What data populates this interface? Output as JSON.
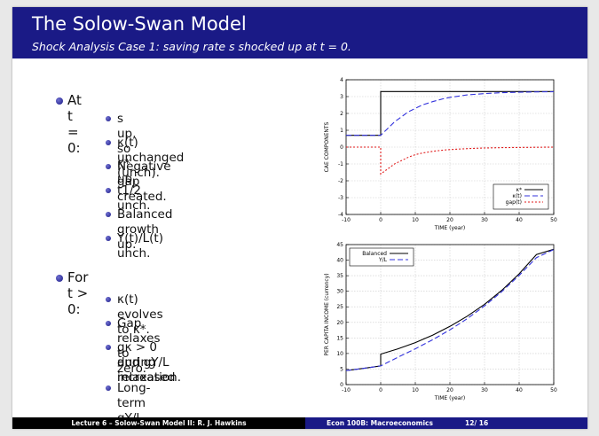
{
  "slide": {
    "title": "The Solow-Swan Model",
    "subtitle": "Shock Analysis Case 1: saving rate s shocked up at t = 0."
  },
  "bullets": {
    "group1_heading": "At t = 0:",
    "group1_items": [
      "s up, so κ* up.",
      "κ(t) unchanged (unch).",
      "Negative gap created.",
      "t1/2 unch.",
      "Balanced growth up.",
      "Y(t)/L(t) unch."
    ],
    "group2_heading": "For t > 0:",
    "group2_items": [
      "κ(t) evolves to κ*.",
      "Gap relaxes to zero.",
      "gκ > 0 and gY/L increased",
      "during relaxation.",
      "Long-term gY/L unch."
    ]
  },
  "footer": {
    "left_text": "Lecture 6 – Solow-Swan Model II: R. J. Hawkins",
    "course": "Econ 100B: Macroeconomics",
    "page": "12/ 16"
  },
  "colors": {
    "accent": "#1a1a86",
    "kappa_star": "#000000",
    "kappa": "#3333dd",
    "gap": "#e01b1b"
  },
  "chart_data": [
    {
      "type": "line",
      "ylabel": "CAE COMPONENTS",
      "xlabel": "TIME (year)",
      "xlim": [
        -10,
        50
      ],
      "ylim": [
        -4,
        4
      ],
      "x_ticks": [
        "-10",
        "0",
        "10",
        "20",
        "30",
        "40",
        "50"
      ],
      "y_ticks": [
        "-4",
        "-3",
        "-2",
        "-1",
        "0",
        "1",
        "2",
        "3",
        "4"
      ],
      "grid": true,
      "legend": "bottom-right",
      "series": [
        {
          "name": "κ*",
          "color": "#000000",
          "dash": "solid",
          "x": [
            -10,
            0,
            0,
            50
          ],
          "y": [
            0.7,
            0.7,
            3.3,
            3.3
          ]
        },
        {
          "name": "κ(t)",
          "color": "#3333dd",
          "dash": "dashed",
          "x": [
            -10,
            0,
            2,
            4,
            6,
            8,
            10,
            12,
            15,
            18,
            20,
            25,
            30,
            35,
            40,
            45,
            50
          ],
          "y": [
            0.7,
            0.7,
            1.1,
            1.5,
            1.8,
            2.1,
            2.3,
            2.5,
            2.7,
            2.87,
            2.95,
            3.1,
            3.18,
            3.23,
            3.26,
            3.28,
            3.29
          ]
        },
        {
          "name": "gap(t)",
          "color": "#e01b1b",
          "dash": "dotted",
          "x": [
            -10,
            0,
            0,
            2,
            4,
            6,
            8,
            10,
            12,
            15,
            18,
            20,
            25,
            30,
            35,
            40,
            45,
            50
          ],
          "y": [
            0,
            0,
            -1.6,
            -1.3,
            -1.0,
            -0.8,
            -0.6,
            -0.45,
            -0.35,
            -0.25,
            -0.18,
            -0.15,
            -0.09,
            -0.05,
            -0.03,
            -0.02,
            -0.01,
            0
          ]
        }
      ]
    },
    {
      "type": "line",
      "ylabel": "PER CAPITA INCOME (currency)",
      "xlabel": "TIME (year)",
      "xlim": [
        -10,
        50
      ],
      "ylim": [
        0,
        45
      ],
      "x_ticks": [
        "-10",
        "0",
        "10",
        "20",
        "30",
        "40",
        "50"
      ],
      "y_ticks": [
        "0",
        "5",
        "10",
        "15",
        "20",
        "25",
        "30",
        "35",
        "40",
        "45"
      ],
      "grid": true,
      "legend": "top-left",
      "series": [
        {
          "name": "Balanced",
          "color": "#000000",
          "dash": "solid",
          "x": [
            -10,
            -5,
            0,
            0,
            5,
            10,
            15,
            20,
            25,
            30,
            35,
            40,
            45,
            50
          ],
          "y": [
            4.5,
            5.2,
            6.0,
            9.8,
            11.5,
            13.5,
            15.9,
            18.7,
            22.0,
            25.8,
            30.3,
            35.6,
            41.8,
            43.5
          ]
        },
        {
          "name": "Y/L",
          "color": "#3333dd",
          "dash": "dashed",
          "x": [
            -10,
            -5,
            0,
            5,
            10,
            15,
            20,
            25,
            30,
            35,
            40,
            45,
            50
          ],
          "y": [
            4.5,
            5.2,
            6.0,
            8.8,
            11.5,
            14.4,
            17.6,
            21.2,
            25.3,
            29.9,
            35.1,
            40.8,
            43.4
          ]
        }
      ]
    }
  ]
}
